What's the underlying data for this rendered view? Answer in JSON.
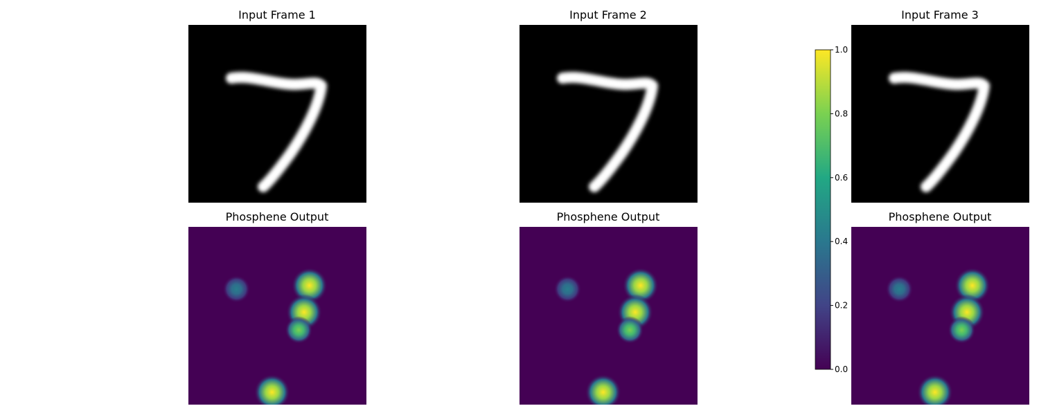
{
  "figure": {
    "input_title_prefix": "Input Frame",
    "frames": [
      {
        "input_title": "Input Frame 1",
        "output_title": "Phosphene Output"
      },
      {
        "input_title": "Input Frame 2",
        "output_title": "Phosphene Output"
      },
      {
        "input_title": "Input Frame 3",
        "output_title": "Phosphene Output"
      }
    ]
  },
  "chart_data": [
    {
      "type": "heatmap",
      "title": "Input Frame 1",
      "colormap": "gray",
      "content": "handwritten digit 7 (white on black)"
    },
    {
      "type": "heatmap",
      "title": "Input Frame 2",
      "colormap": "gray",
      "content": "handwritten digit 7 (white on black)"
    },
    {
      "type": "heatmap",
      "title": "Input Frame 3",
      "colormap": "gray",
      "content": "handwritten digit 7 (white on black)"
    },
    {
      "type": "heatmap",
      "title": "Phosphene Output",
      "colormap": "viridis",
      "vmin": 0,
      "vmax": 1,
      "blobs": [
        {
          "x": 0.27,
          "y": 0.35,
          "intensity": 0.42
        },
        {
          "x": 0.68,
          "y": 0.33,
          "intensity": 1.0
        },
        {
          "x": 0.65,
          "y": 0.48,
          "intensity": 1.0
        },
        {
          "x": 0.62,
          "y": 0.58,
          "intensity": 0.8
        },
        {
          "x": 0.47,
          "y": 0.93,
          "intensity": 1.0
        }
      ]
    },
    {
      "type": "heatmap",
      "title": "Phosphene Output",
      "colormap": "viridis",
      "vmin": 0,
      "vmax": 1,
      "blobs": [
        {
          "x": 0.27,
          "y": 0.35,
          "intensity": 0.42
        },
        {
          "x": 0.68,
          "y": 0.33,
          "intensity": 1.0
        },
        {
          "x": 0.65,
          "y": 0.48,
          "intensity": 1.0
        },
        {
          "x": 0.62,
          "y": 0.58,
          "intensity": 0.8
        },
        {
          "x": 0.47,
          "y": 0.93,
          "intensity": 1.0
        }
      ]
    },
    {
      "type": "heatmap",
      "title": "Phosphene Output",
      "colormap": "viridis",
      "vmin": 0,
      "vmax": 1,
      "blobs": [
        {
          "x": 0.27,
          "y": 0.35,
          "intensity": 0.42
        },
        {
          "x": 0.68,
          "y": 0.33,
          "intensity": 1.0
        },
        {
          "x": 0.65,
          "y": 0.48,
          "intensity": 1.0
        },
        {
          "x": 0.62,
          "y": 0.58,
          "intensity": 0.8
        },
        {
          "x": 0.47,
          "y": 0.93,
          "intensity": 1.0
        }
      ]
    }
  ],
  "colorbar": {
    "colormap": "viridis",
    "range": [
      0,
      1
    ],
    "ticks": [
      "0.0",
      "0.2",
      "0.4",
      "0.6",
      "0.8",
      "1.0"
    ],
    "colors": [
      "#440154",
      "#414487",
      "#2a788e",
      "#22a884",
      "#7ad151",
      "#fde725"
    ]
  },
  "colors": {
    "background": "#ffffff",
    "input_bg": "#000000",
    "digit": "#ffffff",
    "output_bg": "#440154"
  }
}
